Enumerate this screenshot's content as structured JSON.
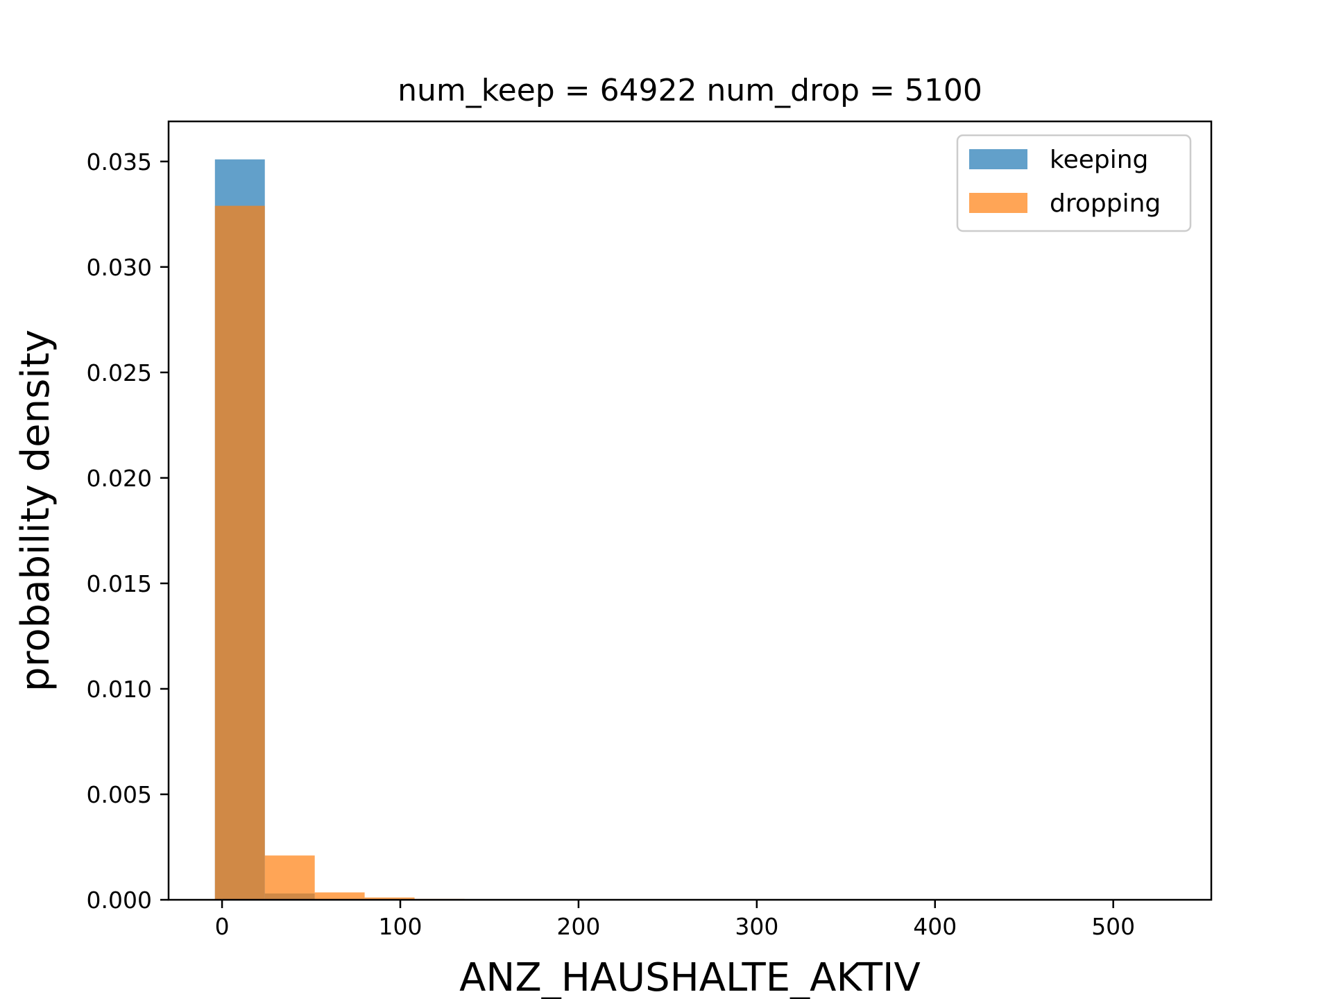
{
  "chart_data": {
    "type": "bar",
    "title": "num_keep = 64922  num_drop = 5100",
    "xlabel": "ANZ_HAUSHALTE_AKTIV",
    "ylabel": "probability density",
    "xlim": [
      -30,
      555
    ],
    "ylim": [
      0,
      0.0369
    ],
    "xticks": [
      0,
      100,
      200,
      300,
      400,
      500
    ],
    "xtick_labels": [
      "0",
      "100",
      "200",
      "300",
      "400",
      "500"
    ],
    "yticks": [
      0,
      0.005,
      0.01,
      0.015,
      0.02,
      0.025,
      0.03,
      0.035
    ],
    "ytick_labels": [
      "0.000",
      "0.005",
      "0.010",
      "0.015",
      "0.020",
      "0.025",
      "0.030",
      "0.035"
    ],
    "bin_edges": [
      -4,
      24,
      52,
      80,
      108,
      136,
      164
    ],
    "series": [
      {
        "name": "keeping",
        "color": "#1f77b4",
        "values": [
          0.0351,
          0.0003,
          4e-05,
          1e-05,
          0.0,
          0.0
        ]
      },
      {
        "name": "dropping",
        "color": "#ff7f0e",
        "values": [
          0.0329,
          0.0021,
          0.00035,
          0.00011,
          4e-05,
          0.0
        ]
      }
    ],
    "bar_alpha": 0.7,
    "legend_placement": "top-right",
    "grid": false
  }
}
